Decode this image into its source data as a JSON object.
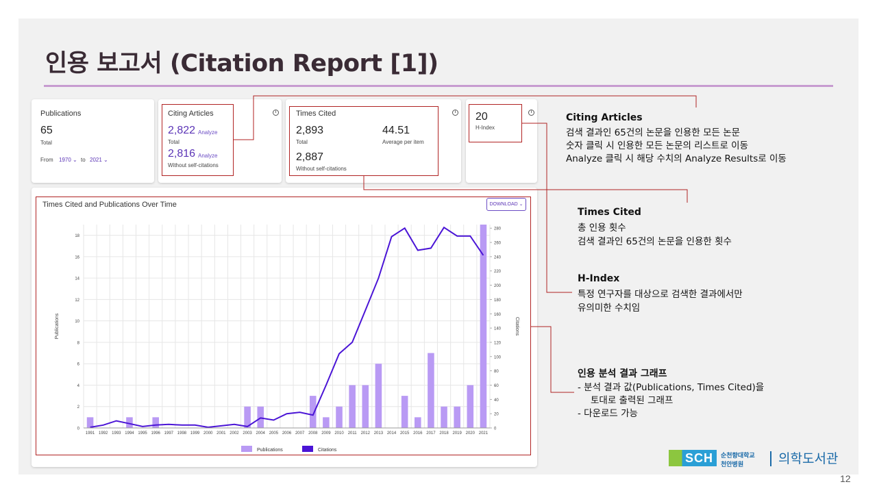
{
  "slide": {
    "title": "인용 보고서 (Citation Report [1])",
    "page_number": "12"
  },
  "cards": {
    "publications": {
      "label": "Publications",
      "value": "65",
      "sub": "Total",
      "from_label": "From",
      "from_value": "1970",
      "to_label": "to",
      "to_value": "2021"
    },
    "citing": {
      "label": "Citing Articles",
      "total_value": "2,822",
      "analyze": "Analyze",
      "total_label": "Total",
      "without_value": "2,816",
      "without_label": "Without self-citations"
    },
    "times_cited": {
      "label": "Times Cited",
      "total_value": "2,893",
      "total_label": "Total",
      "avg_value": "44.51",
      "avg_label": "Average per item",
      "without_value": "2,887",
      "without_label": "Without self-citations"
    },
    "hindex": {
      "value": "20",
      "label": "H-Index"
    }
  },
  "chart": {
    "title": "Times Cited and Publications Over Time",
    "download": "DOWNLOAD",
    "colors": {
      "bars": "#b99af4",
      "line": "#4a14d6"
    }
  },
  "chart_data": {
    "type": "bar",
    "title": "Times Cited and Publications Over Time",
    "ylabel": "Publications",
    "y2label": "Citations",
    "ylim": [
      0,
      19
    ],
    "y2lim": [
      0,
      285
    ],
    "yticks": [
      0,
      2,
      4,
      6,
      8,
      10,
      12,
      14,
      16,
      18
    ],
    "y2ticks": [
      0,
      20,
      40,
      60,
      80,
      100,
      120,
      140,
      160,
      180,
      200,
      220,
      240,
      260,
      280
    ],
    "categories": [
      "1991",
      "1992",
      "1993",
      "1994",
      "1995",
      "1996",
      "1997",
      "1998",
      "1999",
      "2000",
      "2001",
      "2002",
      "2003",
      "2004",
      "2005",
      "2006",
      "2007",
      "2008",
      "2009",
      "2010",
      "2011",
      "2012",
      "2013",
      "2014",
      "2015",
      "2016",
      "2017",
      "2018",
      "2019",
      "2020",
      "2021"
    ],
    "series": [
      {
        "name": "Publications",
        "type": "bar",
        "axis": "left",
        "values": [
          1,
          0,
          0,
          1,
          0,
          1,
          0,
          0,
          0,
          0,
          0,
          0,
          2,
          2,
          0,
          0,
          0,
          3,
          1,
          2,
          4,
          4,
          6,
          0,
          3,
          1,
          7,
          2,
          2,
          4,
          19
        ]
      },
      {
        "name": "Citations",
        "type": "line",
        "axis": "right",
        "values": [
          1,
          4,
          10,
          6,
          2,
          4,
          5,
          4,
          4,
          1,
          3,
          5,
          2,
          14,
          11,
          20,
          22,
          18,
          60,
          104,
          120,
          165,
          210,
          268,
          280,
          249,
          252,
          281,
          269,
          269,
          242
        ]
      }
    ],
    "legend": [
      "Publications",
      "Citations"
    ],
    "legend_position": "bottom"
  },
  "notes": {
    "citing": {
      "title": "Citing Articles",
      "lines": [
        "검색 결과인 65건의 논문을 인용한 모든 논문",
        "숫자 클릭 시 인용한 모든 논문의 리스트로 이동",
        "Analyze 클릭 시 해당 수치의 Analyze Results로 이동"
      ]
    },
    "times_cited": {
      "title": "Times Cited",
      "lines": [
        "총 인용 횟수",
        "검색 결과인 65건의 논문을 인용한 횟수"
      ]
    },
    "hindex": {
      "title": "H-Index",
      "lines": [
        "특정 연구자를 대상으로 검색한 결과에서만",
        "유의미한 수치임"
      ]
    },
    "graph": {
      "title": "인용 분석 결과 그래프",
      "lines": [
        "-   분석 결과 값(Publications, Times Cited)을",
        "토대로 출력된 그래프",
        "-   다운로드 가능"
      ]
    }
  },
  "logo": {
    "brand": "SCH",
    "sub1": "순천향대학교",
    "sub2": "천안병원",
    "library": "의학도서관"
  }
}
